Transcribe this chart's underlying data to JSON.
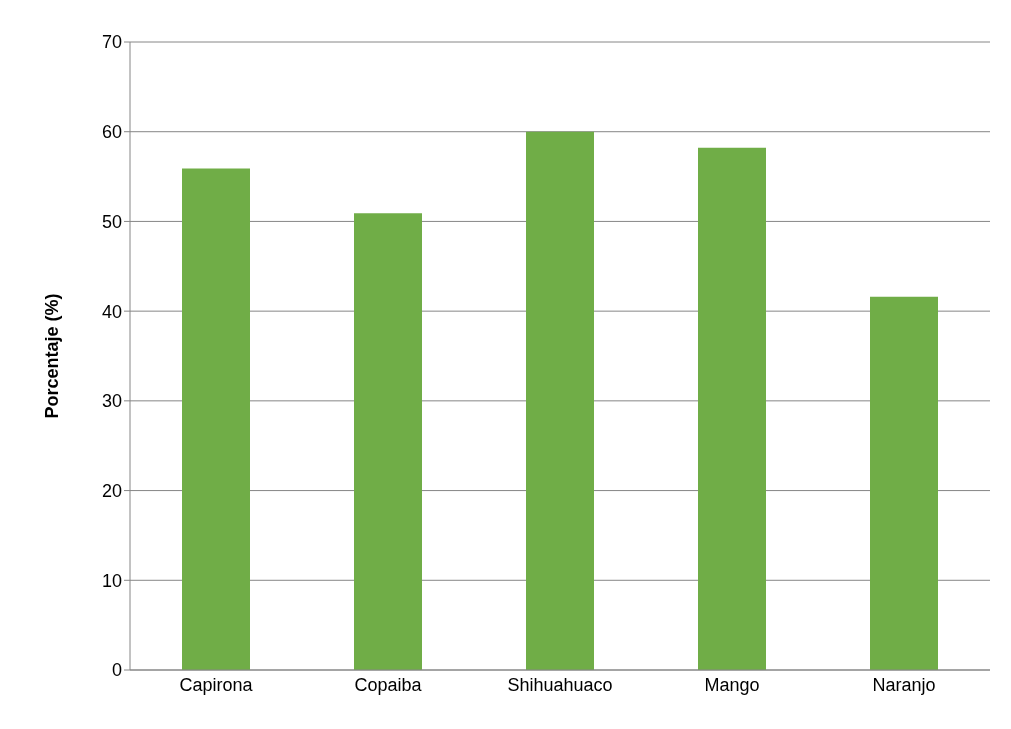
{
  "chart_data": {
    "type": "bar",
    "ylabel": "Porcentaje (%)",
    "categories": [
      "Capirona",
      "Copaiba",
      "Shihuahuaco",
      "Mango",
      "Naranjo"
    ],
    "values": [
      55.9,
      50.9,
      60.0,
      58.2,
      41.6
    ],
    "color": "#70ad47",
    "ylim": [
      0,
      70
    ],
    "yticks": [
      0,
      10,
      20,
      30,
      40,
      50,
      60,
      70
    ],
    "grid": "y"
  }
}
